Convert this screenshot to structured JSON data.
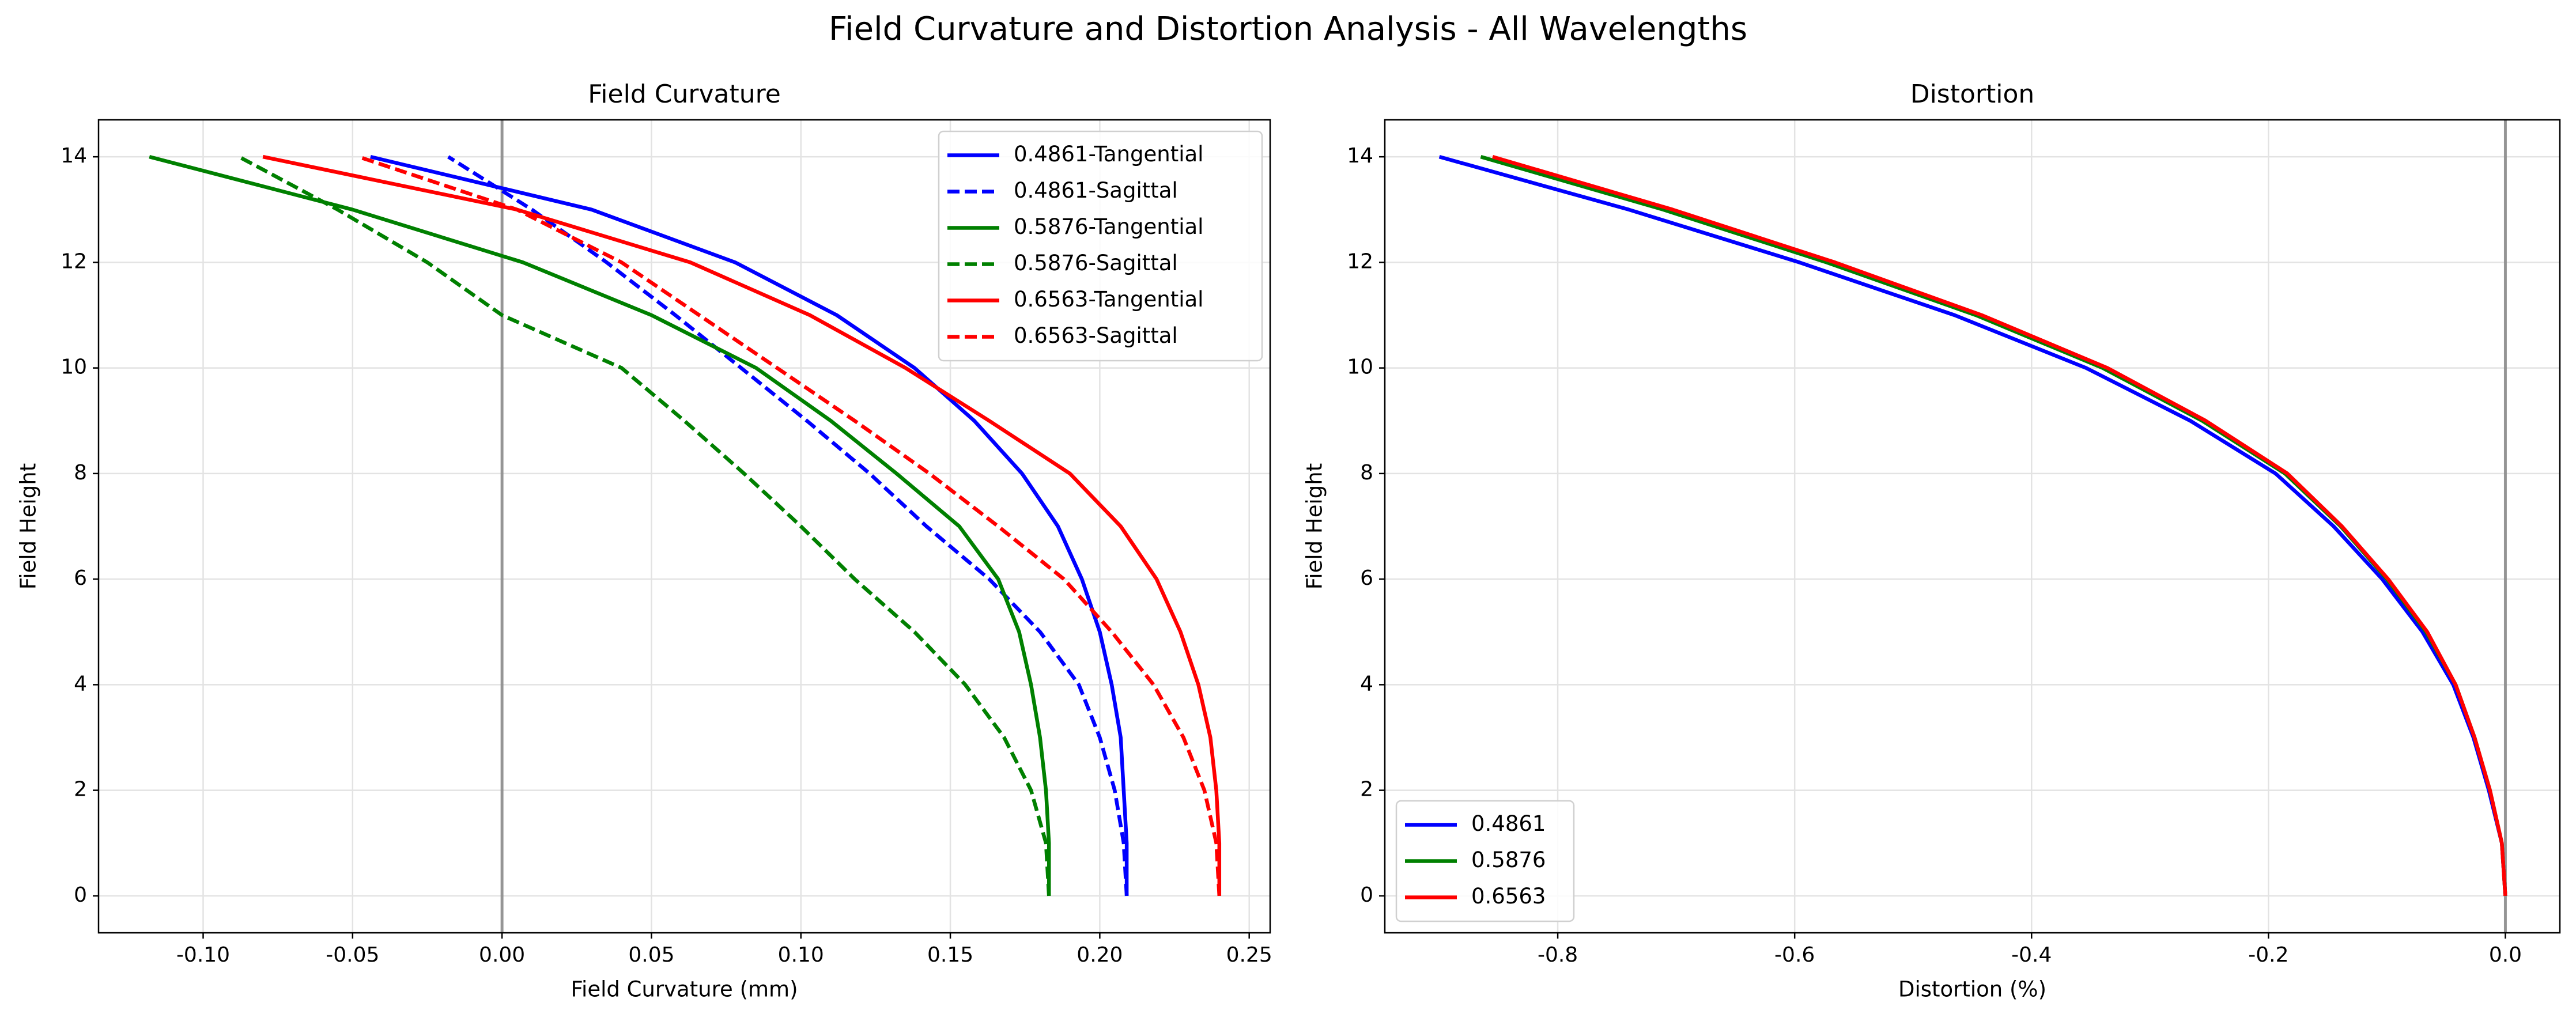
{
  "title": "Field Curvature and Distortion Analysis - All Wavelengths",
  "chart_data": [
    {
      "type": "line",
      "title": "Field Curvature",
      "xlabel": "Field Curvature (mm)",
      "ylabel": "Field Height",
      "xlim": [
        -0.135,
        0.257
      ],
      "ylim": [
        -0.7,
        14.7
      ],
      "xticks": [
        {
          "value": -0.1,
          "label": "-0.10"
        },
        -0.05,
        {
          "value": 0,
          "label": "0.00"
        },
        0.05,
        {
          "value": 0.1,
          "label": "0.10"
        },
        0.15,
        {
          "value": 0.2,
          "label": "0.20"
        },
        0.25
      ],
      "yticks": [
        0,
        2,
        4,
        6,
        8,
        10,
        12,
        14
      ],
      "grid": true,
      "vline": 0,
      "legend": "upper right",
      "y": [
        0,
        1,
        2,
        3,
        4,
        5,
        6,
        7,
        8,
        9,
        10,
        11,
        12,
        13,
        14
      ],
      "series": [
        {
          "name": "0.4861-Tangential",
          "color": "#0000ff",
          "dash": false,
          "x": [
            0.209,
            0.209,
            0.208,
            0.207,
            0.204,
            0.2,
            0.194,
            0.186,
            0.174,
            0.158,
            0.138,
            0.112,
            0.078,
            0.03,
            -0.044
          ]
        },
        {
          "name": "0.4861-Sagittal",
          "color": "#0000ff",
          "dash": true,
          "x": [
            0.209,
            0.208,
            0.205,
            0.2,
            0.193,
            0.18,
            0.163,
            0.142,
            0.123,
            0.102,
            0.08,
            0.058,
            0.035,
            0.01,
            -0.018
          ]
        },
        {
          "name": "0.5876-Tangential",
          "color": "#008000",
          "dash": false,
          "x": [
            0.183,
            0.183,
            0.182,
            0.18,
            0.177,
            0.173,
            0.166,
            0.153,
            0.132,
            0.11,
            0.085,
            0.05,
            0.007,
            -0.05,
            -0.118
          ]
        },
        {
          "name": "0.5876-Sagittal",
          "color": "#008000",
          "dash": true,
          "x": [
            0.183,
            0.182,
            0.177,
            0.168,
            0.155,
            0.138,
            0.118,
            0.1,
            0.081,
            0.061,
            0.04,
            0.0,
            -0.025,
            -0.055,
            -0.088
          ]
        },
        {
          "name": "0.6563-Tangential",
          "color": "#ff0000",
          "dash": false,
          "x": [
            0.24,
            0.24,
            0.239,
            0.237,
            0.233,
            0.227,
            0.219,
            0.207,
            0.19,
            0.163,
            0.135,
            0.103,
            0.063,
            0.005,
            -0.08
          ]
        },
        {
          "name": "0.6563-Sagittal",
          "color": "#ff0000",
          "dash": true,
          "x": [
            0.24,
            0.239,
            0.235,
            0.228,
            0.218,
            0.204,
            0.188,
            0.166,
            0.143,
            0.118,
            0.092,
            0.066,
            0.04,
            0.005,
            -0.048
          ]
        }
      ]
    },
    {
      "type": "line",
      "title": "Distortion",
      "xlabel": "Distortion (%)",
      "ylabel": "Field Height",
      "xlim": [
        -0.946,
        0.046
      ],
      "ylim": [
        -0.7,
        14.7
      ],
      "xticks": [
        -0.8,
        -0.6,
        -0.4,
        -0.2,
        {
          "value": 0,
          "label": "0.0"
        }
      ],
      "yticks": [
        0,
        2,
        4,
        6,
        8,
        10,
        12,
        14
      ],
      "grid": true,
      "vline": 0,
      "legend": "lower left",
      "y": [
        0,
        1,
        2,
        3,
        4,
        5,
        6,
        7,
        8,
        9,
        10,
        11,
        12,
        13,
        14
      ],
      "series": [
        {
          "name": "0.4861",
          "color": "#0000ff",
          "dash": false,
          "x": [
            0,
            -0.003,
            -0.014,
            -0.027,
            -0.044,
            -0.07,
            -0.104,
            -0.145,
            -0.194,
            -0.266,
            -0.354,
            -0.465,
            -0.596,
            -0.74,
            -0.9
          ]
        },
        {
          "name": "0.5876",
          "color": "#008000",
          "dash": false,
          "x": [
            0,
            -0.003,
            -0.013,
            -0.026,
            -0.042,
            -0.067,
            -0.1,
            -0.139,
            -0.186,
            -0.256,
            -0.34,
            -0.447,
            -0.573,
            -0.711,
            -0.865
          ]
        },
        {
          "name": "0.6563",
          "color": "#ff0000",
          "dash": false,
          "x": [
            0,
            -0.003,
            -0.013,
            -0.026,
            -0.042,
            -0.066,
            -0.099,
            -0.138,
            -0.184,
            -0.253,
            -0.336,
            -0.442,
            -0.566,
            -0.703,
            -0.855
          ]
        }
      ]
    }
  ]
}
